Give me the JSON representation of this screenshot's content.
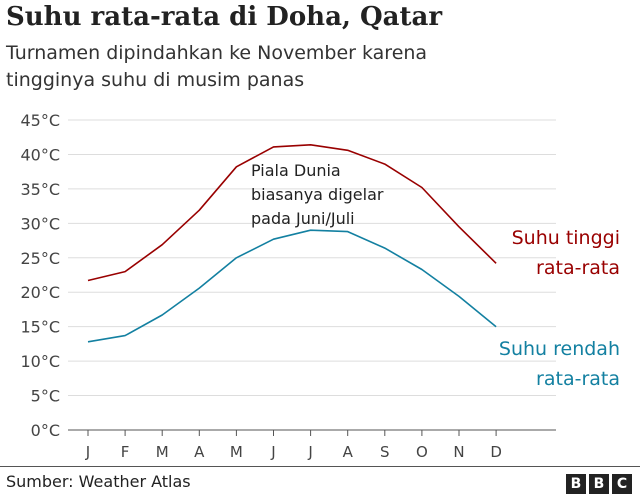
{
  "title": "Suhu rata-rata di Doha, Qatar",
  "subtitle_lines": [
    "Turnamen dipindahkan ke November karena",
    "tingginya suhu di musim panas"
  ],
  "source": "Sumber: Weather Atlas",
  "logo": [
    "B",
    "B",
    "C"
  ],
  "colors": {
    "high": "#990000",
    "low": "#1380a1",
    "grid": "#dddddd",
    "text": "#222222"
  },
  "chart_data": {
    "type": "line",
    "categories": [
      "J",
      "F",
      "M",
      "A",
      "M",
      "J",
      "J",
      "A",
      "S",
      "O",
      "N",
      "D"
    ],
    "ylim": [
      0,
      45
    ],
    "yticks": [
      {
        "value": 45,
        "label": "45°C"
      },
      {
        "value": 40,
        "label": "40°C"
      },
      {
        "value": 35,
        "label": "35°C"
      },
      {
        "value": 30,
        "label": "30°C"
      },
      {
        "value": 25,
        "label": "25°C"
      },
      {
        "value": 20,
        "label": "20°C"
      },
      {
        "value": 15,
        "label": "15°C"
      },
      {
        "value": 10,
        "label": "10°C"
      },
      {
        "value": 5,
        "label": "5°C"
      },
      {
        "value": 0,
        "label": "0°C"
      }
    ],
    "grid": true,
    "series": [
      {
        "key": "high",
        "label_lines": [
          "Suhu tinggi",
          "rata-rata"
        ],
        "values": [
          21.7,
          23.0,
          26.9,
          31.9,
          38.2,
          41.1,
          41.4,
          40.6,
          38.6,
          35.2,
          29.5,
          24.2
        ]
      },
      {
        "key": "low",
        "label_lines": [
          "Suhu rendah",
          "rata-rata"
        ],
        "values": [
          12.8,
          13.7,
          16.7,
          20.6,
          25.0,
          27.7,
          29.0,
          28.8,
          26.4,
          23.3,
          19.4,
          15.0
        ]
      }
    ],
    "annotation_lines": [
      "Piala Dunia",
      "biasanya digelar",
      "pada Juni/Juli"
    ]
  }
}
